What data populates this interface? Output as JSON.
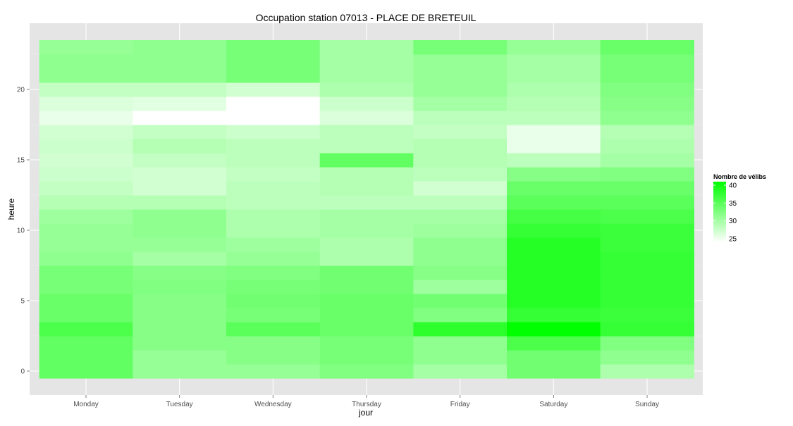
{
  "chart_data": {
    "type": "heatmap",
    "title": "Occupation station 07013 - PLACE DE BRETEUIL",
    "xlabel": "jour",
    "ylabel": "heure",
    "x_categories": [
      "Monday",
      "Tuesday",
      "Wednesday",
      "Thursday",
      "Friday",
      "Saturday",
      "Sunday"
    ],
    "y_hours": [
      0,
      1,
      2,
      3,
      4,
      5,
      6,
      7,
      8,
      9,
      10,
      11,
      12,
      13,
      14,
      15,
      16,
      17,
      18,
      19,
      20,
      21,
      22,
      23
    ],
    "y_ticks": [
      0,
      5,
      10,
      15,
      20
    ],
    "ylim": [
      -0.5,
      23.5
    ],
    "grid": true,
    "series": [
      {
        "day": "Monday",
        "values": [
          34.5,
          34.5,
          34.5,
          36.0,
          34.0,
          34.0,
          33.0,
          33.0,
          31.5,
          31.0,
          31.0,
          30.5,
          29.0,
          28.0,
          27.5,
          27.0,
          27.5,
          27.0,
          25.5,
          26.5,
          28.0,
          31.5,
          31.5,
          31.0
        ]
      },
      {
        "day": "Tuesday",
        "values": [
          31.0,
          31.0,
          32.0,
          32.0,
          32.0,
          32.0,
          32.5,
          32.0,
          30.0,
          31.0,
          31.5,
          31.5,
          29.0,
          27.0,
          27.0,
          28.0,
          29.0,
          28.0,
          24.0,
          26.0,
          28.0,
          31.5,
          31.5,
          31.5
        ]
      },
      {
        "day": "Wednesday",
        "values": [
          31.0,
          32.0,
          32.0,
          35.0,
          33.0,
          33.5,
          33.0,
          32.5,
          31.0,
          30.5,
          29.5,
          29.5,
          28.5,
          28.5,
          28.0,
          28.5,
          28.5,
          27.5,
          24.0,
          24.0,
          27.0,
          33.0,
          33.0,
          33.0
        ]
      },
      {
        "day": "Thursday",
        "values": [
          32.5,
          33.0,
          33.0,
          34.0,
          34.0,
          34.0,
          33.5,
          33.5,
          29.5,
          29.5,
          30.0,
          30.0,
          28.5,
          29.0,
          29.0,
          34.5,
          28.5,
          28.5,
          26.5,
          27.5,
          29.5,
          30.0,
          30.0,
          30.0
        ]
      },
      {
        "day": "Friday",
        "values": [
          30.0,
          31.5,
          31.5,
          38.0,
          32.5,
          33.5,
          30.5,
          32.0,
          31.5,
          31.5,
          30.5,
          30.0,
          28.5,
          27.0,
          28.5,
          29.0,
          29.0,
          28.0,
          28.5,
          30.0,
          31.0,
          31.0,
          31.0,
          33.0
        ]
      },
      {
        "day": "Saturday",
        "values": [
          33.5,
          33.5,
          36.0,
          41.0,
          37.5,
          38.5,
          38.5,
          38.5,
          38.5,
          38.5,
          37.5,
          36.5,
          35.0,
          34.0,
          32.0,
          28.5,
          25.5,
          25.5,
          28.5,
          29.0,
          29.5,
          30.0,
          30.0,
          31.0
        ]
      },
      {
        "day": "Sunday",
        "values": [
          29.5,
          31.5,
          32.5,
          37.5,
          37.0,
          37.5,
          37.5,
          37.5,
          37.5,
          37.0,
          37.0,
          36.0,
          35.0,
          34.0,
          32.5,
          30.0,
          29.5,
          29.0,
          31.5,
          32.0,
          32.5,
          33.0,
          33.0,
          34.0
        ]
      }
    ],
    "legend": {
      "title": "Nombre de vélibs",
      "ticks": [
        25,
        30,
        35,
        40
      ],
      "range": [
        24,
        41
      ],
      "low_color": "#ffffff",
      "high_color": "#00ff00",
      "position": "right"
    },
    "colors": {
      "panel_background": "#e5e5e5",
      "gridline": "#ffffff",
      "tick_text": "#4d4d4d",
      "text": "#000000"
    }
  }
}
